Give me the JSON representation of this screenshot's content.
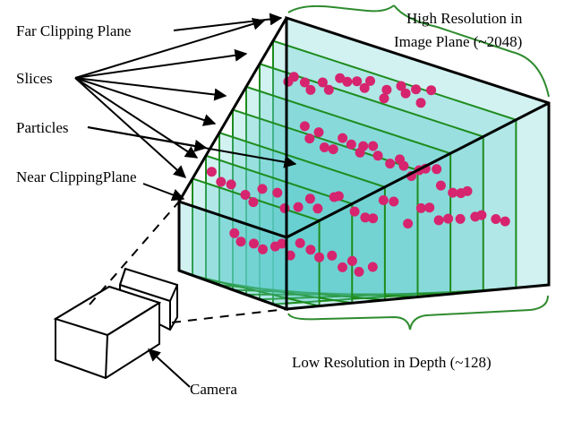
{
  "labels": {
    "far_clipping_plane": "Far Clipping Plane",
    "slices": "Slices",
    "particles": "Particles",
    "near_clipping_plane": "Near ClippingPlane",
    "camera": "Camera",
    "high_res_line1": "High Resolution in",
    "high_res_line2": "Image Plane (~2048)",
    "low_res": "Low Resolution in Depth (~128)"
  },
  "colors": {
    "slice_fill": "#5ccccc",
    "slice_edge": "#1e8c1e",
    "particle": "#d6246e",
    "brace": "#2e8b2e",
    "frustum_edge": "#000000"
  },
  "slice_count": 9,
  "particle_count": 83
}
